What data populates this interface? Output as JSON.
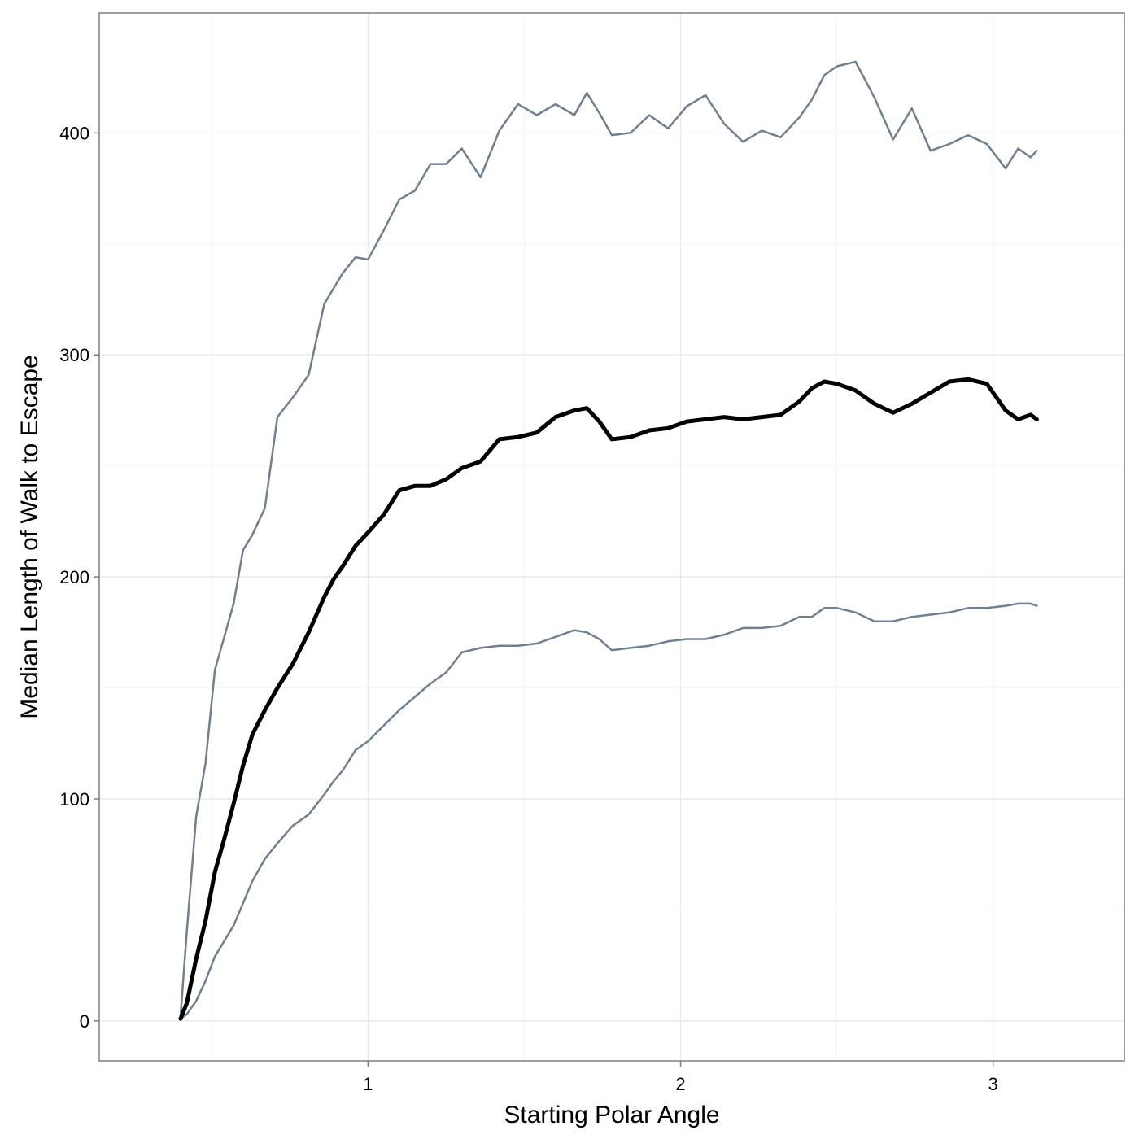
{
  "chart_data": {
    "type": "line",
    "title": "",
    "xlabel": "Starting Polar Angle",
    "ylabel": "Median Length of Walk to Escape",
    "xlim": [
      0.14,
      3.42
    ],
    "ylim": [
      -18,
      454
    ],
    "x_ticks": [
      1,
      2,
      3
    ],
    "y_ticks": [
      0,
      100,
      200,
      300,
      400
    ],
    "x_minor_ticks": [
      0.5,
      1.5,
      2.5
    ],
    "y_minor_ticks": [
      50,
      150,
      250,
      350
    ],
    "grid": true,
    "legend": "none",
    "colors": {
      "bounds": "#708090",
      "median": "#000000",
      "grid": "#ebebeb",
      "frame": "#7f7f7f"
    },
    "x": [
      0.4,
      0.42,
      0.45,
      0.48,
      0.51,
      0.54,
      0.57,
      0.6,
      0.63,
      0.67,
      0.71,
      0.76,
      0.81,
      0.86,
      0.89,
      0.92,
      0.96,
      1.0,
      1.05,
      1.1,
      1.15,
      1.2,
      1.25,
      1.3,
      1.36,
      1.42,
      1.48,
      1.54,
      1.6,
      1.66,
      1.7,
      1.74,
      1.78,
      1.84,
      1.9,
      1.96,
      2.02,
      2.08,
      2.14,
      2.2,
      2.26,
      2.32,
      2.38,
      2.42,
      2.46,
      2.5,
      2.56,
      2.62,
      2.68,
      2.74,
      2.8,
      2.86,
      2.92,
      2.98,
      3.04,
      3.08,
      3.12,
      3.14
    ],
    "series": [
      {
        "role": "upper",
        "values": [
          2,
          40,
          92,
          116,
          158,
          173,
          188,
          212,
          219,
          231,
          272,
          281,
          291,
          323,
          330,
          337,
          344,
          343,
          356,
          370,
          374,
          386,
          386,
          393,
          380,
          401,
          413,
          408,
          413,
          408,
          418,
          409,
          399,
          400,
          408,
          402,
          412,
          417,
          404,
          396,
          401,
          398,
          407,
          415,
          426,
          430,
          432,
          416,
          397,
          411,
          392,
          395,
          399,
          395,
          384,
          393,
          389,
          392
        ]
      },
      {
        "role": "median",
        "values": [
          1,
          8,
          28,
          45,
          67,
          82,
          98,
          115,
          129,
          140,
          150,
          161,
          175,
          191,
          199,
          205,
          214,
          220,
          228,
          239,
          241,
          241,
          244,
          249,
          252,
          262,
          263,
          265,
          272,
          275,
          276,
          270,
          262,
          263,
          266,
          267,
          270,
          271,
          272,
          271,
          272,
          273,
          279,
          285,
          288,
          287,
          284,
          278,
          274,
          278,
          283,
          288,
          289,
          287,
          275,
          271,
          273,
          271
        ]
      },
      {
        "role": "lower",
        "values": [
          1,
          3,
          9,
          18,
          29,
          36,
          43,
          53,
          63,
          73,
          80,
          88,
          93,
          102,
          108,
          113,
          122,
          126,
          133,
          140,
          146,
          152,
          157,
          166,
          168,
          169,
          169,
          170,
          173,
          176,
          175,
          172,
          167,
          168,
          169,
          171,
          172,
          172,
          174,
          177,
          177,
          178,
          182,
          182,
          186,
          186,
          184,
          180,
          180,
          182,
          183,
          184,
          186,
          186,
          187,
          188,
          188,
          187
        ]
      }
    ]
  }
}
